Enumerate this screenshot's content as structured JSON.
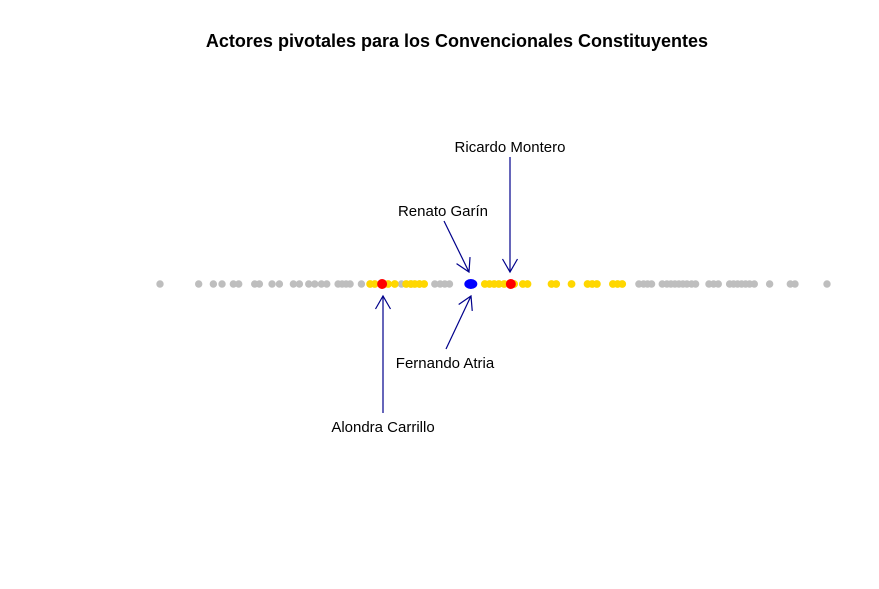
{
  "chart_data": {
    "type": "scatter",
    "title": "Actores pivotales para los Convencionales Constituyentes",
    "xlabel": "",
    "ylabel": "",
    "axes_visible": false,
    "xlim": [
      0,
      100
    ],
    "colors": {
      "base": "#bebebe",
      "pivotal_range": "#ffd700",
      "pivot_left_right": "#ff0000",
      "median": "#0000ff",
      "arrow": "#00008b"
    },
    "points": {
      "gray": [
        0,
        5.8,
        8,
        9.3,
        11,
        11.8,
        14.2,
        14.9,
        16.8,
        17.9,
        20,
        20.9,
        22.3,
        23.2,
        24.2,
        25,
        26.7,
        27.3,
        27.9,
        28.5,
        30.2,
        36.2,
        37.7,
        38.9,
        41.2,
        42,
        42.7,
        43.4,
        71.8,
        72.5,
        73.1,
        73.7,
        75.3,
        76,
        76.6,
        77.2,
        77.8,
        78.4,
        79,
        79.7,
        80.3,
        82.3,
        83,
        83.7,
        85.4,
        86,
        86.6,
        87.2,
        87.8,
        88.4,
        89.1,
        91.4,
        94.5,
        95.2,
        100
      ],
      "yellow": [
        31.5,
        32.2,
        33.6,
        34.2,
        35.2,
        36.9,
        37.6,
        38.2,
        38.9,
        39.6,
        48.7,
        49.4,
        50.1,
        50.8,
        51.6,
        52.3,
        53.1,
        54.4,
        55.1,
        58.7,
        59.4,
        61.7,
        64.1,
        64.8,
        65.5,
        67.9,
        68.6,
        69.3
      ],
      "red": [
        33.3,
        52.6
      ],
      "blue": [
        46.6
      ]
    },
    "annotations": [
      {
        "label": "Ricardo Montero",
        "x": 52.6,
        "position": "above"
      },
      {
        "label": "Renato Garín",
        "x": 46.6,
        "position": "above"
      },
      {
        "label": "Fernando Atria",
        "x": 46.6,
        "position": "below"
      },
      {
        "label": "Alondra Carrillo",
        "x": 33.3,
        "position": "below"
      }
    ]
  }
}
